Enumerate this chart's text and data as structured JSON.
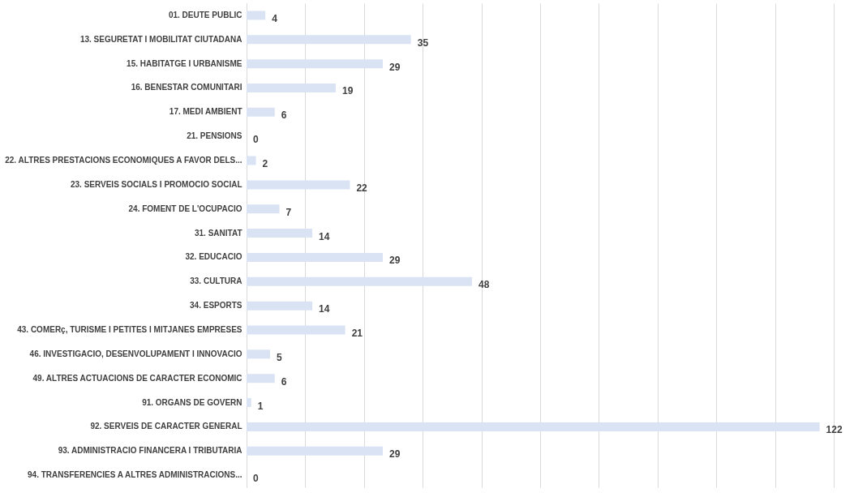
{
  "chart_data": {
    "type": "bar",
    "orientation": "horizontal",
    "categories": [
      "01. DEUTE PUBLIC",
      "13. SEGURETAT I MOBILITAT CIUTADANA",
      "15. HABITATGE I URBANISME",
      "16. BENESTAR COMUNITARI",
      "17. MEDI AMBIENT",
      "21. PENSIONS",
      "22. ALTRES PRESTACIONS ECONOMIQUES A FAVOR DELS...",
      "23. SERVEIS SOCIALS I PROMOCIO SOCIAL",
      "24. FOMENT DE L'OCUPACIO",
      "31. SANITAT",
      "32. EDUCACIO",
      "33. CULTURA",
      "34. ESPORTS",
      "43. COMERç, TURISME I PETITES I MITJANES EMPRESES",
      "46. INVESTIGACIO, DESENVOLUPAMENT I INNOVACIO",
      "49. ALTRES ACTUACIONS DE CARACTER ECONOMIC",
      "91. ORGANS DE GOVERN",
      "92. SERVEIS DE CARACTER GENERAL",
      "93. ADMINISTRACIO FINANCERA I TRIBUTARIA",
      "94. TRANSFERENCIES A ALTRES ADMINISTRACIONS..."
    ],
    "values": [
      4,
      35,
      29,
      19,
      6,
      0,
      2,
      22,
      7,
      14,
      29,
      48,
      14,
      21,
      5,
      6,
      1,
      122,
      29,
      0
    ],
    "color": "#dae3f3",
    "xlim": [
      0,
      125
    ],
    "xticks": [
      {
        "value": 0,
        "label": null
      },
      {
        "value": 12.5,
        "label": null
      },
      {
        "value": 25,
        "label": null
      },
      {
        "value": 37.5,
        "label": null
      },
      {
        "value": 50,
        "label": null
      },
      {
        "value": 62.5,
        "label": null
      },
      {
        "value": 75,
        "label": null
      },
      {
        "value": 87.5,
        "label": null
      },
      {
        "value": 100,
        "label": null
      },
      {
        "value": 112.5,
        "label": null
      },
      {
        "value": 125,
        "label": null
      }
    ],
    "tick_labels": "y",
    "grid": "x",
    "data_labels": true
  }
}
